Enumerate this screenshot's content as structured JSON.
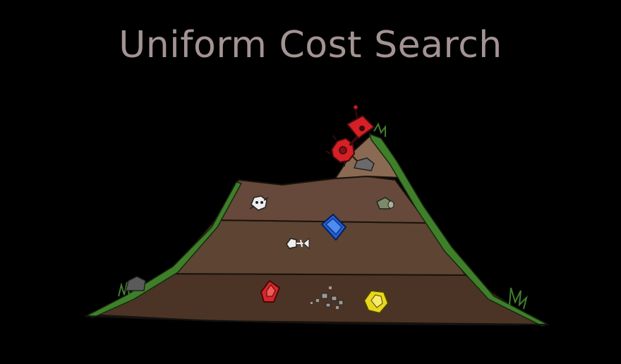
{
  "slide": {
    "title": "Uniform Cost Search"
  },
  "colors": {
    "background": "#000000",
    "title": "#a49393",
    "soil_top": "#8a6a53",
    "soil_mid": "#5e4432",
    "soil_deep": "#4b3425",
    "grass": "#3f7f2a",
    "robot": "#d61f26",
    "gem_blue": "#1f5fd8",
    "gem_red": "#d8262a",
    "gem_yellow": "#e8d71c"
  },
  "illustration": {
    "subject": "robot digging down into a layered hill",
    "icons": [
      "robot-icon",
      "blue-gem-icon",
      "red-gem-icon",
      "yellow-gem-icon",
      "skull-icon",
      "fish-bone-icon",
      "tin-can-icon",
      "rock-icon",
      "rubble-icon"
    ]
  }
}
